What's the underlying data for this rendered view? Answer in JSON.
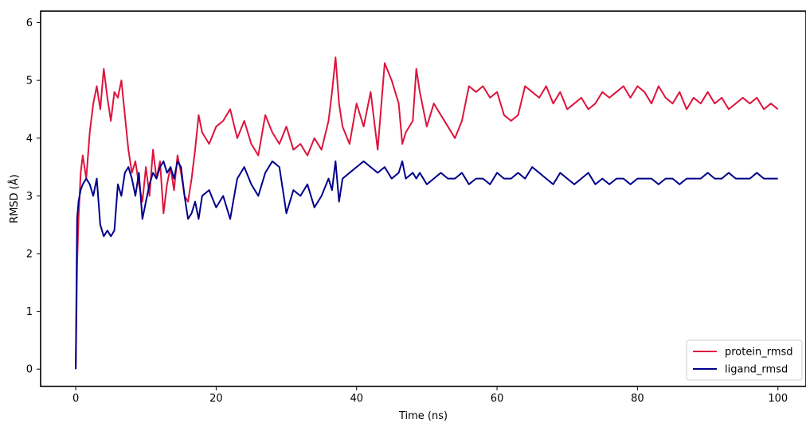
{
  "chart_data": {
    "type": "line",
    "xlabel": "Time (ns)",
    "ylabel": "RMSD (Å)",
    "xlim": [
      -5,
      104
    ],
    "ylim": [
      -0.3,
      6.2
    ],
    "xticks": [
      0,
      20,
      40,
      60,
      80,
      100
    ],
    "yticks": [
      0,
      1,
      2,
      3,
      4,
      5,
      6
    ],
    "grid": false,
    "legend_position": "lower-right",
    "series": [
      {
        "name": "protein_rmsd",
        "color": "#dc143c",
        "x": [
          0,
          0.2,
          0.4,
          0.7,
          1,
          1.5,
          2,
          2.5,
          3,
          3.5,
          4,
          4.5,
          5,
          5.5,
          6,
          6.5,
          7,
          7.5,
          8,
          8.5,
          9,
          9.5,
          10,
          10.5,
          11,
          11.5,
          12,
          12.5,
          13,
          13.5,
          14,
          14.5,
          15,
          15.5,
          16,
          16.5,
          17,
          17.5,
          18,
          19,
          20,
          21,
          22,
          23,
          24,
          25,
          26,
          27,
          28,
          29,
          30,
          31,
          32,
          33,
          34,
          35,
          36,
          36.5,
          37,
          37.5,
          38,
          39,
          40,
          41,
          42,
          43,
          44,
          45,
          46,
          46.5,
          47,
          48,
          48.5,
          49,
          50,
          51,
          52,
          53,
          54,
          55,
          56,
          57,
          58,
          59,
          60,
          61,
          62,
          63,
          64,
          65,
          66,
          67,
          68,
          69,
          70,
          71,
          72,
          73,
          74,
          75,
          76,
          77,
          78,
          79,
          80,
          81,
          82,
          83,
          84,
          85,
          86,
          87,
          88,
          89,
          90,
          91,
          92,
          93,
          94,
          95,
          96,
          97,
          98,
          99,
          100
        ],
        "values": [
          0.0,
          1.8,
          2.6,
          3.4,
          3.7,
          3.3,
          4.1,
          4.6,
          4.9,
          4.5,
          5.2,
          4.7,
          4.3,
          4.8,
          4.7,
          5.0,
          4.4,
          3.8,
          3.4,
          3.6,
          3.2,
          2.9,
          3.5,
          3.0,
          3.8,
          3.3,
          3.6,
          2.7,
          3.2,
          3.5,
          3.1,
          3.7,
          3.4,
          3.0,
          2.9,
          3.3,
          3.8,
          4.4,
          4.1,
          3.9,
          4.2,
          4.3,
          4.5,
          4.0,
          4.3,
          3.9,
          3.7,
          4.4,
          4.1,
          3.9,
          4.2,
          3.8,
          3.9,
          3.7,
          4.0,
          3.8,
          4.3,
          4.8,
          5.4,
          4.6,
          4.2,
          3.9,
          4.6,
          4.2,
          4.8,
          3.8,
          5.3,
          5.0,
          4.6,
          3.9,
          4.1,
          4.3,
          5.2,
          4.8,
          4.2,
          4.6,
          4.4,
          4.2,
          4.0,
          4.3,
          4.9,
          4.8,
          4.9,
          4.7,
          4.8,
          4.4,
          4.3,
          4.4,
          4.9,
          4.8,
          4.7,
          4.9,
          4.6,
          4.8,
          4.5,
          4.6,
          4.7,
          4.5,
          4.6,
          4.8,
          4.7,
          4.8,
          4.9,
          4.7,
          4.9,
          4.8,
          4.6,
          4.9,
          4.7,
          4.6,
          4.8,
          4.5,
          4.7,
          4.6,
          4.8,
          4.6,
          4.7,
          4.5,
          4.6,
          4.7,
          4.6,
          4.7,
          4.5,
          4.6,
          4.5
        ]
      },
      {
        "name": "ligand_rmsd",
        "color": "#00008b",
        "x": [
          0,
          0.2,
          0.4,
          0.7,
          1,
          1.5,
          2,
          2.5,
          3,
          3.5,
          4,
          4.5,
          5,
          5.5,
          6,
          6.5,
          7,
          7.5,
          8,
          8.5,
          9,
          9.5,
          10,
          10.5,
          11,
          11.5,
          12,
          12.5,
          13,
          13.5,
          14,
          14.5,
          15,
          15.5,
          16,
          16.5,
          17,
          17.5,
          18,
          19,
          20,
          21,
          22,
          23,
          24,
          25,
          26,
          27,
          28,
          29,
          30,
          31,
          32,
          33,
          34,
          35,
          36,
          36.5,
          37,
          37.5,
          38,
          39,
          40,
          41,
          42,
          43,
          44,
          45,
          46,
          46.5,
          47,
          48,
          48.5,
          49,
          50,
          51,
          52,
          53,
          54,
          55,
          56,
          57,
          58,
          59,
          60,
          61,
          62,
          63,
          64,
          65,
          66,
          67,
          68,
          69,
          70,
          71,
          72,
          73,
          74,
          75,
          76,
          77,
          78,
          79,
          80,
          81,
          82,
          83,
          84,
          85,
          86,
          87,
          88,
          89,
          90,
          91,
          92,
          93,
          94,
          95,
          96,
          97,
          98,
          99,
          100
        ],
        "values": [
          0.0,
          2.6,
          2.9,
          3.1,
          3.2,
          3.3,
          3.2,
          3.0,
          3.3,
          2.5,
          2.3,
          2.4,
          2.3,
          2.4,
          3.2,
          3.0,
          3.4,
          3.5,
          3.3,
          3.0,
          3.4,
          2.6,
          2.9,
          3.2,
          3.4,
          3.3,
          3.5,
          3.6,
          3.4,
          3.5,
          3.3,
          3.6,
          3.5,
          3.0,
          2.6,
          2.7,
          2.9,
          2.6,
          3.0,
          3.1,
          2.8,
          3.0,
          2.6,
          3.3,
          3.5,
          3.2,
          3.0,
          3.4,
          3.6,
          3.5,
          2.7,
          3.1,
          3.0,
          3.2,
          2.8,
          3.0,
          3.3,
          3.1,
          3.6,
          2.9,
          3.3,
          3.4,
          3.5,
          3.6,
          3.5,
          3.4,
          3.5,
          3.3,
          3.4,
          3.6,
          3.3,
          3.4,
          3.3,
          3.4,
          3.2,
          3.3,
          3.4,
          3.3,
          3.3,
          3.4,
          3.2,
          3.3,
          3.3,
          3.2,
          3.4,
          3.3,
          3.3,
          3.4,
          3.3,
          3.5,
          3.4,
          3.3,
          3.2,
          3.4,
          3.3,
          3.2,
          3.3,
          3.4,
          3.2,
          3.3,
          3.2,
          3.3,
          3.3,
          3.2,
          3.3,
          3.3,
          3.3,
          3.2,
          3.3,
          3.3,
          3.2,
          3.3,
          3.3,
          3.3,
          3.4,
          3.3,
          3.3,
          3.4,
          3.3,
          3.3,
          3.3,
          3.4,
          3.3,
          3.3,
          3.3
        ]
      }
    ]
  }
}
